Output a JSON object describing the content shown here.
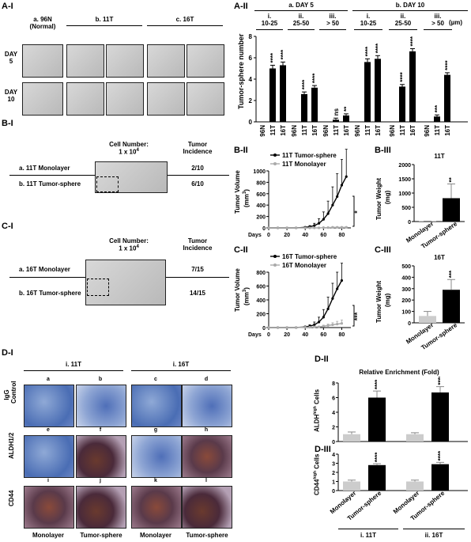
{
  "panel_AI": {
    "label": "A-I",
    "col_a": "a. 96N",
    "col_a2": "(Normal)",
    "col_b": "b. 11T",
    "col_c": "c. 16T",
    "row1a": "DAY",
    "row1b": "5",
    "row2a": "DAY",
    "row2b": "10"
  },
  "panel_AII": {
    "label": "A-II",
    "ylabel": "Tumor-sphere number",
    "day5": "a. DAY 5",
    "day10": "b. DAY 10",
    "g1": "i.",
    "g1r": "10-25",
    "g2": "ii.",
    "g2r": "25-50",
    "g3": "iii.",
    "g3r": "> 50",
    "unit": "(µm)",
    "cats": [
      "96N",
      "11T",
      "16T",
      "96N",
      "11T",
      "16T",
      "96N",
      "11T",
      "16T",
      "96N",
      "11T",
      "16T",
      "96N",
      "11T",
      "16T",
      "96N",
      "11T",
      "16T"
    ],
    "sig": [
      "",
      "****",
      "****",
      "",
      "****",
      "****",
      "",
      "ns",
      "**",
      "",
      "****",
      "****",
      "",
      "****",
      "****",
      "",
      "***",
      "****"
    ],
    "yticks": [
      "0",
      "2",
      "4",
      "6",
      "8"
    ]
  },
  "panel_BI": {
    "label": "B-I",
    "cellnum": "Cell Number:",
    "cellnum2": "1 x 10",
    "sup": "4",
    "incid": "Tumor",
    "incid2": "Incidence",
    "rowa": "a. 11T Monolayer",
    "rowb": "b. 11T Tumor-sphere",
    "ia": "2/10",
    "ib": "6/10"
  },
  "panel_BII": {
    "label": "B-II",
    "legend1": "11T Tumor-sphere",
    "legend2": "11T Monolayer",
    "ylabel": "Tumor Volume",
    "yunit": "(mm",
    "yunit_sup": "3",
    "yunit_end": ")",
    "xlabel": "Days",
    "xticks": [
      "0",
      "20",
      "40",
      "60",
      "80"
    ],
    "yticks": [
      "0",
      "200",
      "400",
      "600",
      "800",
      "1000"
    ],
    "sig": "*"
  },
  "panel_BIII": {
    "label": "B-III",
    "title": "11T",
    "ylabel": "Tumor Weight",
    "yunit": "(mg)",
    "yticks": [
      "0",
      "500",
      "1000",
      "1500",
      "2000"
    ],
    "cats": [
      "Monolayer",
      "Tumor-sphere"
    ],
    "sig": "**"
  },
  "panel_CI": {
    "label": "C-I",
    "cellnum": "Cell Number:",
    "cellnum2": "1 x 10",
    "sup": "4",
    "incid": "Tumor",
    "incid2": "Incidence",
    "rowa": "a. 16T Monolayer",
    "rowb": "b. 16T Tumor-sphere",
    "ia": "7/15",
    "ib": "14/15"
  },
  "panel_CII": {
    "label": "C-II",
    "legend1": "16T Tumor-sphere",
    "legend2": "16T Monolayer",
    "ylabel": "Tumor Volume",
    "yunit": "(mm",
    "yunit_sup": "3",
    "yunit_end": ")",
    "xlabel": "Days",
    "xticks": [
      "0",
      "20",
      "40",
      "60",
      "80"
    ],
    "yticks": [
      "0",
      "200",
      "400",
      "600",
      "800"
    ],
    "sig": "***"
  },
  "panel_CIII": {
    "label": "C-III",
    "title": "16T",
    "ylabel": "Tumor Weight",
    "yunit": "(mg)",
    "yticks": [
      "0",
      "100",
      "200",
      "300",
      "400",
      "500"
    ],
    "cats": [
      "Monolayer",
      "Tumor-sphere"
    ],
    "sig": "***"
  },
  "panel_DI": {
    "label": "D-I",
    "head1": "i. 11T",
    "head2": "i. 16T",
    "letters_r1": [
      "a",
      "b",
      "c",
      "d"
    ],
    "letters_r2": [
      "e",
      "f",
      "g",
      "h"
    ],
    "letters_r3": [
      "i",
      "j",
      "k",
      "l"
    ],
    "row1a": "IgG",
    "row1b": "Control",
    "row2": "ALDH1/2",
    "row3": "CD44",
    "foot": [
      "Monolayer",
      "Tumor-sphere",
      "Monolayer",
      "Tumor-sphere"
    ]
  },
  "panel_DII": {
    "label": "D-II",
    "title": "Relative Enrichment (Fold)",
    "ylabel": "ALDH",
    "ylabel_sup": "high",
    "ylabel_end": " Cells",
    "yticks": [
      "0",
      "2",
      "4",
      "6",
      "8"
    ],
    "sig": "****"
  },
  "panel_DIII": {
    "label": "D-III",
    "ylabel": "CD44",
    "ylabel_sup": "high",
    "ylabel_end": " Cells",
    "yticks": [
      "0",
      "1",
      "2",
      "3",
      "4"
    ],
    "sig": "****",
    "cats": [
      "Monolayer",
      "Tumor-sphere"
    ],
    "g1": "i. 11T",
    "g2": "ii. 16T"
  },
  "chart_data": [
    {
      "type": "bar",
      "id": "A-II",
      "categories": [
        "96N",
        "11T",
        "16T",
        "96N",
        "11T",
        "16T",
        "96N",
        "11T",
        "16T",
        "96N",
        "11T",
        "16T",
        "96N",
        "11T",
        "16T",
        "96N",
        "11T",
        "16T"
      ],
      "values": [
        0,
        5.0,
        5.3,
        0,
        2.6,
        3.2,
        0,
        0.2,
        0.6,
        0,
        5.6,
        5.9,
        0,
        3.3,
        6.6,
        0,
        0.5,
        4.4
      ],
      "errors": [
        0,
        0.3,
        0.3,
        0,
        0.2,
        0.2,
        0,
        0.15,
        0.15,
        0,
        0.3,
        0.3,
        0,
        0.2,
        0.25,
        0,
        0.15,
        0.2
      ],
      "ylim": [
        0,
        8
      ]
    },
    {
      "type": "line",
      "id": "B-II",
      "x": [
        0,
        10,
        20,
        30,
        40,
        45,
        50,
        55,
        60,
        65,
        70,
        75,
        80,
        85
      ],
      "series": [
        {
          "name": "11T Tumor-sphere",
          "values": [
            0,
            0,
            0,
            0,
            10,
            20,
            40,
            80,
            150,
            250,
            400,
            550,
            750,
            900
          ],
          "err": [
            0,
            0,
            0,
            0,
            10,
            20,
            40,
            80,
            130,
            220,
            320,
            400,
            450,
            480
          ]
        },
        {
          "name": "11T Monolayer",
          "values": [
            0,
            0,
            0,
            0,
            0,
            0,
            0,
            0,
            5,
            5,
            10,
            10,
            10,
            10
          ],
          "err": [
            0,
            0,
            0,
            0,
            0,
            0,
            0,
            0,
            5,
            5,
            10,
            10,
            10,
            10
          ]
        }
      ],
      "xlim": [
        0,
        90
      ],
      "ylim": [
        0,
        1000
      ]
    },
    {
      "type": "bar",
      "id": "B-III",
      "categories": [
        "Monolayer",
        "Tumor-sphere"
      ],
      "values": [
        10,
        820
      ],
      "errors": [
        5,
        500
      ],
      "ylim": [
        0,
        2000
      ]
    },
    {
      "type": "line",
      "id": "C-II",
      "x": [
        0,
        10,
        20,
        30,
        40,
        45,
        50,
        55,
        60,
        65,
        70,
        75,
        80
      ],
      "series": [
        {
          "name": "16T Tumor-sphere",
          "values": [
            0,
            0,
            0,
            0,
            10,
            20,
            40,
            80,
            150,
            270,
            420,
            560,
            680
          ],
          "err": [
            0,
            0,
            0,
            0,
            10,
            20,
            40,
            70,
            110,
            170,
            220,
            240,
            250
          ]
        },
        {
          "name": "16T Monolayer",
          "values": [
            0,
            0,
            0,
            0,
            5,
            5,
            10,
            10,
            20,
            30,
            40,
            50,
            60
          ],
          "err": [
            0,
            0,
            0,
            0,
            5,
            5,
            10,
            10,
            15,
            20,
            30,
            40,
            50
          ]
        }
      ],
      "xlim": [
        0,
        90
      ],
      "ylim": [
        0,
        800
      ]
    },
    {
      "type": "bar",
      "id": "C-III",
      "categories": [
        "Monolayer",
        "Tumor-sphere"
      ],
      "values": [
        60,
        290
      ],
      "errors": [
        40,
        90
      ],
      "ylim": [
        0,
        500
      ]
    },
    {
      "type": "bar",
      "id": "D-II",
      "categories": [
        "Monolayer",
        "Tumor-sphere",
        "Monolayer",
        "Tumor-sphere"
      ],
      "values": [
        1.0,
        6.0,
        1.0,
        6.7
      ],
      "errors": [
        0.3,
        0.9,
        0.2,
        0.8
      ],
      "ylim": [
        0,
        8
      ]
    },
    {
      "type": "bar",
      "id": "D-III",
      "categories": [
        "Monolayer",
        "Tumor-sphere",
        "Monolayer",
        "Tumor-sphere"
      ],
      "values": [
        1.0,
        2.8,
        1.0,
        2.9
      ],
      "errors": [
        0.15,
        0.15,
        0.15,
        0.2
      ],
      "ylim": [
        0,
        4
      ]
    }
  ]
}
